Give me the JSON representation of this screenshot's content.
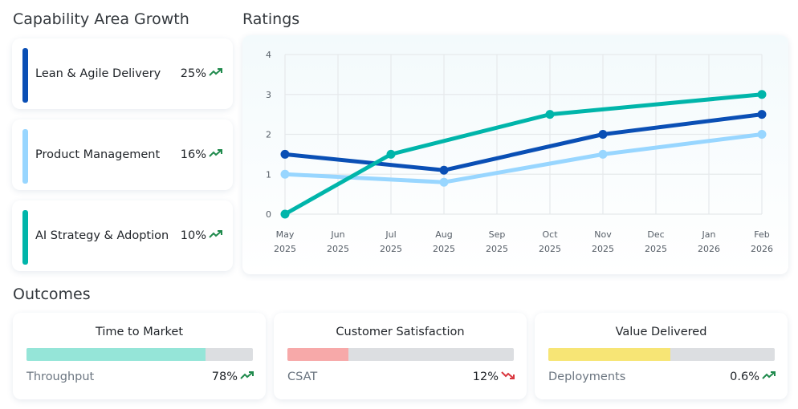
{
  "sections": {
    "capability": "Capability Area Growth",
    "ratings": "Ratings",
    "outcomes": "Outcomes"
  },
  "capabilities": [
    {
      "label": "Lean & Agile Delivery",
      "value": "25%",
      "trend": "up",
      "color": "#0a4fb5"
    },
    {
      "label": "Product Management",
      "value": "16%",
      "trend": "up",
      "color": "#98d6ff"
    },
    {
      "label": "AI Strategy & Adoption",
      "value": "10%",
      "trend": "up",
      "color": "#00b5aa"
    }
  ],
  "outcomes": [
    {
      "title": "Time to Market",
      "metric": "Throughput",
      "value": "78%",
      "trend": "up",
      "fill_pct": 79,
      "color": "#95e5d8"
    },
    {
      "title": "Customer Satisfaction",
      "metric": "CSAT",
      "value": "12%",
      "trend": "down",
      "fill_pct": 27,
      "color": "#f7a9a9"
    },
    {
      "title": "Value Delivered",
      "metric": "Deployments",
      "value": "0.6%",
      "trend": "up",
      "fill_pct": 54,
      "color": "#f7e575"
    }
  ],
  "colors": {
    "up": "#1f8a4c",
    "down": "#d9363e"
  },
  "chart_data": {
    "type": "line",
    "categories": [
      [
        "May",
        "2025"
      ],
      [
        "Jun",
        "2025"
      ],
      [
        "Jul",
        "2025"
      ],
      [
        "Aug",
        "2025"
      ],
      [
        "Sep",
        "2025"
      ],
      [
        "Oct",
        "2025"
      ],
      [
        "Nov",
        "2025"
      ],
      [
        "Dec",
        "2025"
      ],
      [
        "Jan",
        "2026"
      ],
      [
        "Feb",
        "2026"
      ]
    ],
    "ylim": [
      0,
      4
    ],
    "yticks": [
      "0",
      "1",
      "2",
      "3",
      "4"
    ],
    "grid": true,
    "series": [
      {
        "color": "#98d6ff",
        "points": [
          [
            0,
            1
          ],
          [
            3,
            0.8
          ],
          [
            6,
            1.5
          ],
          [
            9,
            2
          ]
        ]
      },
      {
        "color": "#0a4fb5",
        "points": [
          [
            0,
            1.5
          ],
          [
            3,
            1.1
          ],
          [
            6,
            2
          ],
          [
            9,
            2.5
          ]
        ]
      },
      {
        "color": "#00b5aa",
        "points": [
          [
            0,
            0
          ],
          [
            2,
            1.5
          ],
          [
            5,
            2.5
          ],
          [
            9,
            3
          ]
        ]
      }
    ]
  }
}
